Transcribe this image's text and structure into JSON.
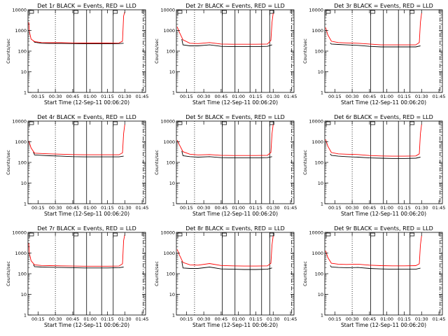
{
  "chart_data": {
    "type": "line",
    "panel_count": 9,
    "x_tick_labels": [
      "00:15",
      "00:30",
      "00:45",
      "01:00",
      "01:15",
      "01:30",
      "01:45"
    ],
    "x_ticks_minutes": [
      15,
      30,
      45,
      60,
      75,
      90,
      105
    ],
    "xlim_minutes": [
      6.33,
      108
    ],
    "xlabel": "Start Time (12-Sep-11 00:06:20)",
    "ylabel": "Counts/sec",
    "y_scale": "log",
    "ylim": [
      1,
      10000
    ],
    "y_tick_labels": [
      "1",
      "10",
      "100",
      "1000",
      "10000"
    ],
    "y_tick_values": [
      1,
      10,
      100,
      1000,
      10000
    ],
    "series": [
      {
        "name": "Events",
        "color": "#000000"
      },
      {
        "name": "LLD",
        "color": "#ff0000"
      }
    ],
    "marker_lines_minutes": {
      "dotted": [
        22,
        30
      ],
      "solid": [
        46,
        57,
        70,
        80,
        87
      ],
      "dashdot": [
        106
      ]
    },
    "panels": [
      {
        "title": "Det 1r BLACK = Events, RED = LLD",
        "events": [
          [
            11,
            320
          ],
          [
            12,
            270
          ],
          [
            18,
            240
          ],
          [
            25,
            235
          ],
          [
            35,
            235
          ],
          [
            45,
            230
          ],
          [
            55,
            225
          ],
          [
            65,
            225
          ],
          [
            75,
            225
          ],
          [
            85,
            230
          ],
          [
            89,
            240
          ]
        ],
        "lld": [
          [
            7,
            2500
          ],
          [
            7.5,
            900
          ],
          [
            9,
            380
          ],
          [
            12,
            290
          ],
          [
            18,
            260
          ],
          [
            25,
            255
          ],
          [
            35,
            255
          ],
          [
            45,
            250
          ],
          [
            55,
            245
          ],
          [
            65,
            245
          ],
          [
            75,
            245
          ],
          [
            85,
            250
          ],
          [
            88,
            300
          ],
          [
            89,
            5000
          ],
          [
            90,
            8000
          ]
        ],
        "dotted": [
          30
        ],
        "solid": [
          46,
          57,
          70,
          80
        ],
        "dashdot": [
          106
        ]
      },
      {
        "title": "Det 2r BLACK = Events, RED = LLD",
        "events": [
          [
            11,
            380
          ],
          [
            12,
            200
          ],
          [
            18,
            180
          ],
          [
            25,
            180
          ],
          [
            35,
            200
          ],
          [
            45,
            170
          ],
          [
            55,
            165
          ],
          [
            65,
            165
          ],
          [
            75,
            165
          ],
          [
            85,
            170
          ],
          [
            89,
            200
          ]
        ],
        "lld": [
          [
            7,
            1500
          ],
          [
            9,
            800
          ],
          [
            12,
            350
          ],
          [
            18,
            240
          ],
          [
            25,
            230
          ],
          [
            35,
            260
          ],
          [
            45,
            220
          ],
          [
            55,
            215
          ],
          [
            65,
            215
          ],
          [
            75,
            215
          ],
          [
            85,
            220
          ],
          [
            88,
            330
          ],
          [
            89,
            2500
          ],
          [
            90,
            7000
          ]
        ],
        "dotted": [
          22
        ],
        "solid": [
          46,
          57,
          70,
          80,
          87
        ],
        "dashdot": [
          106
        ]
      },
      {
        "title": "Det 3r BLACK = Events, RED = LLD",
        "events": [
          [
            11,
            250
          ],
          [
            12,
            220
          ],
          [
            18,
            210
          ],
          [
            25,
            200
          ],
          [
            35,
            190
          ],
          [
            45,
            170
          ],
          [
            55,
            160
          ],
          [
            65,
            160
          ],
          [
            75,
            160
          ],
          [
            85,
            160
          ],
          [
            89,
            180
          ]
        ],
        "lld": [
          [
            7,
            1400
          ],
          [
            9,
            600
          ],
          [
            12,
            300
          ],
          [
            18,
            260
          ],
          [
            25,
            250
          ],
          [
            35,
            240
          ],
          [
            45,
            220
          ],
          [
            55,
            200
          ],
          [
            65,
            200
          ],
          [
            75,
            200
          ],
          [
            85,
            200
          ],
          [
            88,
            260
          ],
          [
            89,
            2500
          ],
          [
            90,
            7000
          ]
        ],
        "dotted": [
          30
        ],
        "solid": [
          46,
          57,
          70,
          80
        ],
        "dashdot": [
          106
        ]
      },
      {
        "title": "Det 4r BLACK = Events, RED = LLD",
        "events": [
          [
            11,
            320
          ],
          [
            12,
            230
          ],
          [
            18,
            220
          ],
          [
            25,
            210
          ],
          [
            35,
            200
          ],
          [
            45,
            190
          ],
          [
            55,
            185
          ],
          [
            65,
            185
          ],
          [
            75,
            185
          ],
          [
            85,
            185
          ],
          [
            89,
            200
          ]
        ],
        "lld": [
          [
            7,
            1100
          ],
          [
            9,
            500
          ],
          [
            12,
            280
          ],
          [
            18,
            270
          ],
          [
            25,
            260
          ],
          [
            35,
            250
          ],
          [
            45,
            240
          ],
          [
            55,
            235
          ],
          [
            65,
            235
          ],
          [
            75,
            235
          ],
          [
            85,
            235
          ],
          [
            88,
            290
          ],
          [
            89,
            2500
          ],
          [
            90,
            7000
          ]
        ],
        "dotted": [
          30
        ],
        "solid": [
          46,
          57,
          70,
          80
        ],
        "dashdot": [
          106
        ]
      },
      {
        "title": "Det 5r BLACK = Events, RED = LLD",
        "events": [
          [
            11,
            360
          ],
          [
            12,
            210
          ],
          [
            18,
            190
          ],
          [
            25,
            180
          ],
          [
            35,
            190
          ],
          [
            45,
            170
          ],
          [
            55,
            165
          ],
          [
            65,
            165
          ],
          [
            75,
            165
          ],
          [
            85,
            170
          ],
          [
            89,
            190
          ]
        ],
        "lld": [
          [
            7,
            1200
          ],
          [
            9,
            700
          ],
          [
            12,
            330
          ],
          [
            18,
            250
          ],
          [
            25,
            230
          ],
          [
            35,
            240
          ],
          [
            45,
            220
          ],
          [
            55,
            215
          ],
          [
            65,
            215
          ],
          [
            75,
            215
          ],
          [
            85,
            220
          ],
          [
            88,
            300
          ],
          [
            89,
            2500
          ],
          [
            90,
            7000
          ]
        ],
        "dotted": [
          22
        ],
        "solid": [
          46,
          57,
          70,
          80,
          87
        ],
        "dashdot": [
          106
        ]
      },
      {
        "title": "Det 6r BLACK = Events, RED = LLD",
        "events": [
          [
            11,
            260
          ],
          [
            12,
            220
          ],
          [
            18,
            200
          ],
          [
            25,
            190
          ],
          [
            35,
            180
          ],
          [
            45,
            165
          ],
          [
            55,
            160
          ],
          [
            65,
            155
          ],
          [
            75,
            155
          ],
          [
            85,
            160
          ],
          [
            89,
            180
          ]
        ],
        "lld": [
          [
            7,
            1300
          ],
          [
            9,
            600
          ],
          [
            12,
            300
          ],
          [
            18,
            260
          ],
          [
            25,
            250
          ],
          [
            35,
            240
          ],
          [
            45,
            215
          ],
          [
            55,
            205
          ],
          [
            65,
            200
          ],
          [
            75,
            200
          ],
          [
            85,
            205
          ],
          [
            88,
            260
          ],
          [
            89,
            2500
          ],
          [
            90,
            7000
          ]
        ],
        "dotted": [
          30
        ],
        "solid": [
          46,
          57,
          70,
          80
        ],
        "dashdot": [
          106
        ]
      },
      {
        "title": "Det 7r BLACK = Events, RED = LLD",
        "events": [
          [
            11,
            280
          ],
          [
            12,
            220
          ],
          [
            18,
            210
          ],
          [
            25,
            205
          ],
          [
            35,
            200
          ],
          [
            45,
            195
          ],
          [
            55,
            190
          ],
          [
            65,
            190
          ],
          [
            75,
            190
          ],
          [
            85,
            195
          ],
          [
            89,
            210
          ]
        ],
        "lld": [
          [
            7,
            3000
          ],
          [
            7.5,
            1000
          ],
          [
            9,
            420
          ],
          [
            12,
            270
          ],
          [
            18,
            250
          ],
          [
            25,
            245
          ],
          [
            35,
            240
          ],
          [
            45,
            235
          ],
          [
            55,
            230
          ],
          [
            65,
            230
          ],
          [
            75,
            230
          ],
          [
            85,
            235
          ],
          [
            88,
            300
          ],
          [
            89,
            4000
          ],
          [
            90,
            8000
          ]
        ],
        "dotted": [
          30
        ],
        "solid": [
          46,
          57,
          70,
          80
        ],
        "dashdot": [
          106
        ]
      },
      {
        "title": "Det 8r BLACK = Events, RED = LLD",
        "events": [
          [
            11,
            400
          ],
          [
            12,
            190
          ],
          [
            18,
            180
          ],
          [
            25,
            180
          ],
          [
            35,
            210
          ],
          [
            45,
            170
          ],
          [
            55,
            165
          ],
          [
            65,
            160
          ],
          [
            75,
            160
          ],
          [
            85,
            165
          ],
          [
            89,
            190
          ]
        ],
        "lld": [
          [
            7,
            1500
          ],
          [
            9,
            800
          ],
          [
            12,
            350
          ],
          [
            18,
            270
          ],
          [
            25,
            260
          ],
          [
            35,
            310
          ],
          [
            45,
            250
          ],
          [
            55,
            240
          ],
          [
            65,
            235
          ],
          [
            75,
            235
          ],
          [
            85,
            240
          ],
          [
            88,
            320
          ],
          [
            89,
            2500
          ],
          [
            90,
            7000
          ]
        ],
        "dotted": [
          22
        ],
        "solid": [
          46,
          57,
          70,
          80,
          87
        ],
        "dashdot": [
          106
        ]
      },
      {
        "title": "Det 9r BLACK = Events, RED = LLD",
        "events": [
          [
            11,
            250
          ],
          [
            12,
            210
          ],
          [
            18,
            200
          ],
          [
            25,
            195
          ],
          [
            35,
            200
          ],
          [
            45,
            180
          ],
          [
            55,
            170
          ],
          [
            65,
            165
          ],
          [
            75,
            165
          ],
          [
            85,
            165
          ],
          [
            89,
            185
          ]
        ],
        "lld": [
          [
            7,
            1300
          ],
          [
            9,
            600
          ],
          [
            12,
            320
          ],
          [
            18,
            290
          ],
          [
            25,
            280
          ],
          [
            35,
            290
          ],
          [
            45,
            260
          ],
          [
            55,
            245
          ],
          [
            65,
            240
          ],
          [
            75,
            240
          ],
          [
            85,
            245
          ],
          [
            88,
            300
          ],
          [
            89,
            2500
          ],
          [
            90,
            7000
          ]
        ],
        "dotted": [
          30
        ],
        "solid": [
          46,
          57,
          70,
          80
        ],
        "dashdot": [
          106
        ]
      }
    ]
  }
}
